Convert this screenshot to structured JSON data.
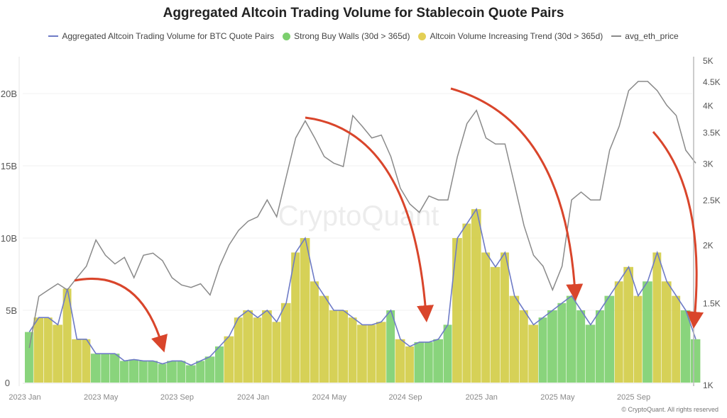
{
  "chart_data": {
    "type": "bar+line",
    "title": "Aggregated Altcoin Trading Volume for Stablecoin Quote Pairs",
    "legend": [
      {
        "name": "Aggregated Altcoin Trading Volume for BTC Quote Pairs",
        "kind": "line",
        "color": "#6e7bc6"
      },
      {
        "name": "Strong Buy Walls (30d > 365d)",
        "kind": "dot",
        "color": "#7ccf6e"
      },
      {
        "name": "Altcoin Volume Increasing Trend (30d > 365d)",
        "kind": "dot",
        "color": "#e3cf55"
      },
      {
        "name": "avg_eth_price",
        "kind": "line",
        "color": "#8a8a8a"
      }
    ],
    "legend_placement": "top",
    "x_ticks": [
      "2023 Jan",
      "2023 May",
      "2023 Sep",
      "2024 Jan",
      "2024 May",
      "2024 Sep",
      "2025 Jan",
      "2025 May",
      "2025 Sep"
    ],
    "x_tick_dates": [
      "2023-01-01",
      "2023-05-01",
      "2023-09-01",
      "2024-01-01",
      "2024-05-01",
      "2024-09-01",
      "2025-01-01",
      "2025-05-01",
      "2025-09-01"
    ],
    "y_left": {
      "ticks": [
        0,
        5,
        10,
        15,
        20
      ],
      "labels": [
        "0",
        "5B",
        "10B",
        "15B",
        "20B"
      ],
      "range": [
        0,
        22.3
      ],
      "unit": "B"
    },
    "y_right": {
      "scale": "log",
      "ticks": [
        1000,
        1500,
        2000,
        2500,
        3000,
        3500,
        4000,
        4500,
        5000
      ],
      "labels": [
        "1K",
        "1.5K",
        "2K",
        "2.5K",
        "3K",
        "3.5K",
        "4K",
        "4.5K",
        "5K"
      ],
      "range": [
        1000,
        5000
      ]
    },
    "grid": "horizontal",
    "dates": [
      "2023-01-01",
      "2023-01-15",
      "2023-02-01",
      "2023-02-15",
      "2023-03-01",
      "2023-03-15",
      "2023-04-01",
      "2023-04-15",
      "2023-05-01",
      "2023-05-15",
      "2023-06-01",
      "2023-06-15",
      "2023-07-01",
      "2023-07-15",
      "2023-08-01",
      "2023-08-15",
      "2023-09-01",
      "2023-09-15",
      "2023-10-01",
      "2023-10-15",
      "2023-11-01",
      "2023-11-15",
      "2023-12-01",
      "2023-12-15",
      "2024-01-01",
      "2024-01-15",
      "2024-02-01",
      "2024-02-15",
      "2024-03-01",
      "2024-03-15",
      "2024-04-01",
      "2024-04-15",
      "2024-05-01",
      "2024-05-15",
      "2024-06-01",
      "2024-06-15",
      "2024-07-01",
      "2024-07-15",
      "2024-08-01",
      "2024-08-15",
      "2024-09-01",
      "2024-09-15",
      "2024-10-01",
      "2024-10-15",
      "2024-11-01",
      "2024-11-15",
      "2024-12-01",
      "2024-12-15",
      "2025-01-01",
      "2025-01-15",
      "2025-02-01",
      "2025-02-15",
      "2025-03-01",
      "2025-03-15",
      "2025-04-01",
      "2025-04-15",
      "2025-05-01",
      "2025-05-15",
      "2025-06-01",
      "2025-06-15",
      "2025-07-01",
      "2025-07-15",
      "2025-08-01",
      "2025-08-15",
      "2025-09-01",
      "2025-09-15",
      "2025-10-01",
      "2025-10-15",
      "2025-11-01",
      "2025-11-15",
      "2025-12-01"
    ],
    "volume_b": [
      3.5,
      4.5,
      4.5,
      4,
      6.5,
      3,
      3,
      2,
      2,
      2,
      1.5,
      1.6,
      1.5,
      1.5,
      1.3,
      1.5,
      1.5,
      1.2,
      1.5,
      1.8,
      2.5,
      3.2,
      4.5,
      5,
      4.5,
      5,
      4.2,
      5.5,
      9,
      10,
      7,
      6,
      5,
      5,
      4.5,
      4,
      4,
      4.2,
      5,
      3,
      2.5,
      2.8,
      2.8,
      3,
      4,
      10,
      11,
      12,
      9,
      8,
      9,
      6,
      5,
      4,
      4.5,
      5,
      5.5,
      6,
      5,
      4,
      5,
      6,
      7,
      8,
      6,
      7,
      9,
      7,
      6,
      5,
      3
    ],
    "avg_eth_price": [
      1200,
      1550,
      1600,
      1650,
      1600,
      1700,
      1800,
      2050,
      1900,
      1820,
      1880,
      1700,
      1900,
      1920,
      1850,
      1700,
      1640,
      1620,
      1650,
      1560,
      1800,
      2000,
      2150,
      2250,
      2300,
      2500,
      2300,
      2800,
      3400,
      3700,
      3400,
      3100,
      3000,
      2950,
      3800,
      3600,
      3400,
      3450,
      3100,
      2650,
      2450,
      2350,
      2550,
      2500,
      2500,
      3100,
      3650,
      3900,
      3400,
      3300,
      3300,
      2700,
      2200,
      1900,
      1800,
      1600,
      1800,
      2500,
      2600,
      2500,
      2500,
      3200,
      3600,
      4300,
      4500,
      4500,
      4300,
      4000,
      3800,
      3200,
      3000
    ],
    "signal": [
      "buy",
      "trend",
      "trend",
      "trend",
      "trend",
      "trend",
      "trend",
      "buy",
      "buy",
      "buy",
      "buy",
      "buy",
      "buy",
      "buy",
      "buy",
      "buy",
      "buy",
      "buy",
      "buy",
      "buy",
      "buy",
      "trend",
      "trend",
      "trend",
      "trend",
      "trend",
      "trend",
      "trend",
      "trend",
      "trend",
      "trend",
      "trend",
      "trend",
      "trend",
      "trend",
      "trend",
      "trend",
      "trend",
      "buy",
      "trend",
      "trend",
      "buy",
      "buy",
      "buy",
      "buy",
      "trend",
      "trend",
      "trend",
      "trend",
      "trend",
      "trend",
      "trend",
      "trend",
      "trend",
      "buy",
      "buy",
      "buy",
      "buy",
      "buy",
      "buy",
      "buy",
      "buy",
      "trend",
      "trend",
      "trend",
      "buy",
      "trend",
      "trend",
      "trend",
      "buy",
      "buy"
    ]
  },
  "watermark": "CryptoQuant",
  "footer": "© CryptoQuant. All rights reserved"
}
